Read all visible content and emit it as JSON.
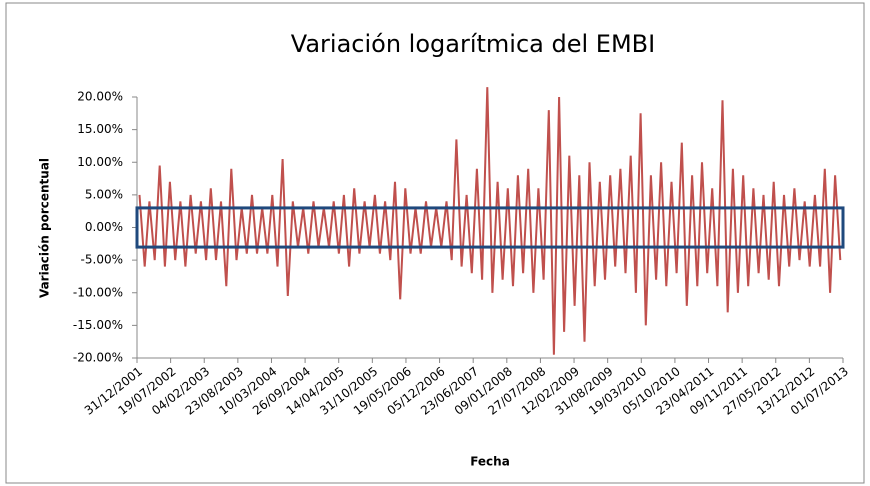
{
  "chart_data": {
    "type": "line",
    "title": "Variación logarítmica del EMBI",
    "x_label": "Fecha",
    "y_label": "Variación porcentual",
    "x": [
      "15/01/2002",
      "15/02/2002",
      "15/03/2002",
      "15/04/2002",
      "15/05/2002",
      "15/06/2002",
      "15/07/2002",
      "15/08/2002",
      "15/09/2002",
      "15/10/2002",
      "15/11/2002",
      "15/12/2002",
      "15/01/2003",
      "15/02/2003",
      "15/03/2003",
      "15/04/2003",
      "15/05/2003",
      "15/06/2003",
      "15/07/2003",
      "15/08/2003",
      "15/09/2003",
      "15/10/2003",
      "15/11/2003",
      "15/12/2003",
      "15/01/2004",
      "15/02/2004",
      "15/03/2004",
      "15/04/2004",
      "15/05/2004",
      "15/06/2004",
      "15/07/2004",
      "15/08/2004",
      "15/09/2004",
      "15/10/2004",
      "15/11/2004",
      "15/12/2004",
      "15/01/2005",
      "15/02/2005",
      "15/03/2005",
      "15/04/2005",
      "15/05/2005",
      "15/06/2005",
      "15/07/2005",
      "15/08/2005",
      "15/09/2005",
      "15/10/2005",
      "15/11/2005",
      "15/12/2005",
      "15/01/2006",
      "15/02/2006",
      "15/03/2006",
      "15/04/2006",
      "15/05/2006",
      "15/06/2006",
      "15/07/2006",
      "15/08/2006",
      "15/09/2006",
      "15/10/2006",
      "15/11/2006",
      "15/12/2006",
      "15/01/2007",
      "15/02/2007",
      "15/03/2007",
      "15/04/2007",
      "15/05/2007",
      "15/06/2007",
      "15/07/2007",
      "15/08/2007",
      "15/09/2007",
      "15/10/2007",
      "15/11/2007",
      "15/12/2007",
      "15/01/2008",
      "15/02/2008",
      "15/03/2008",
      "15/04/2008",
      "15/05/2008",
      "15/06/2008",
      "15/07/2008",
      "15/08/2008",
      "15/09/2008",
      "15/10/2008",
      "15/11/2008",
      "15/12/2008",
      "15/01/2009",
      "15/02/2009",
      "15/03/2009",
      "15/04/2009",
      "15/05/2009",
      "15/06/2009",
      "15/07/2009",
      "15/08/2009",
      "15/09/2009",
      "15/10/2009",
      "15/11/2009",
      "15/12/2009",
      "15/01/2010",
      "15/02/2010",
      "15/03/2010",
      "15/04/2010",
      "15/05/2010",
      "15/06/2010",
      "15/07/2010",
      "15/08/2010",
      "15/09/2010",
      "15/10/2010",
      "15/11/2010",
      "15/12/2010",
      "15/01/2011",
      "15/02/2011",
      "15/03/2011",
      "15/04/2011",
      "15/05/2011",
      "15/06/2011",
      "15/07/2011",
      "15/08/2011",
      "15/09/2011",
      "15/10/2011",
      "15/11/2011",
      "15/12/2011",
      "15/01/2012",
      "15/02/2012",
      "15/03/2012",
      "15/04/2012",
      "15/05/2012",
      "15/06/2012",
      "15/07/2012",
      "15/08/2012",
      "15/09/2012",
      "15/10/2012",
      "15/11/2012",
      "15/12/2012",
      "15/01/2013",
      "15/02/2013",
      "15/03/2013",
      "15/04/2013",
      "15/05/2013",
      "15/06/2013"
    ],
    "series": [
      {
        "color": "#c0504d",
        "values": [
          5,
          -6,
          4,
          -5,
          9.5,
          -6,
          7,
          -5,
          4,
          -6,
          5,
          -4,
          4,
          -5,
          6,
          -5,
          4,
          -9,
          9,
          -5,
          3,
          -4,
          5,
          -4,
          3,
          -4,
          5,
          -6,
          10.5,
          -10.5,
          4,
          -3,
          3,
          -4,
          4,
          -3,
          3,
          -3,
          4,
          -4,
          5,
          -6,
          6,
          -4,
          4,
          -3,
          5,
          -4,
          4,
          -5,
          7,
          -11,
          6,
          -4,
          3,
          -4,
          4,
          -3,
          3,
          -3,
          4,
          -5,
          13.5,
          -6,
          5,
          -7,
          9,
          -8,
          21.5,
          -10,
          7,
          -8,
          6,
          -9,
          8,
          -7,
          9,
          -10,
          6,
          -8,
          18,
          -19.5,
          20,
          -16,
          11,
          -12,
          8,
          -17.5,
          10,
          -9,
          7,
          -8,
          8,
          -6,
          9,
          -7,
          11,
          -10,
          17.5,
          -15,
          8,
          -8,
          10,
          -9,
          7,
          -7,
          13,
          -12,
          8,
          -9,
          10,
          -7,
          6,
          -9,
          19.5,
          -13,
          9,
          -10,
          8,
          -9,
          6,
          -7,
          5,
          -8,
          7,
          -9,
          5,
          -6,
          6,
          -5,
          4,
          -6,
          5,
          -6,
          9,
          -10,
          8,
          -5
        ]
      }
    ],
    "highlight_band": [
      -3,
      3
    ],
    "highlight_color": "#1f497d",
    "xlim": [
      "31/12/2001",
      "01/07/2013"
    ],
    "xticks": [
      "31/12/2001",
      "19/07/2002",
      "04/02/2003",
      "23/08/2003",
      "10/03/2004",
      "26/09/2004",
      "14/04/2005",
      "31/10/2005",
      "19/05/2006",
      "05/12/2006",
      "23/06/2007",
      "09/01/2008",
      "27/07/2008",
      "12/02/2009",
      "31/08/2009",
      "19/03/2010",
      "05/10/2010",
      "23/04/2011",
      "09/11/2011",
      "27/05/2012",
      "13/12/2012",
      "01/07/2013"
    ],
    "ylim": [
      -20,
      20
    ],
    "yticks": [
      {
        "value": -20,
        "label": "-20.00%"
      },
      {
        "value": -15,
        "label": "-15.00%"
      },
      {
        "value": -10,
        "label": "-10.00%"
      },
      {
        "value": -5,
        "label": "-5.00%"
      },
      {
        "value": 0,
        "label": "0.00%"
      },
      {
        "value": 5,
        "label": "5.00%"
      },
      {
        "value": 10,
        "label": "10.00%"
      },
      {
        "value": 15,
        "label": "15.00%"
      },
      {
        "value": 20,
        "label": "20.00%"
      }
    ]
  }
}
